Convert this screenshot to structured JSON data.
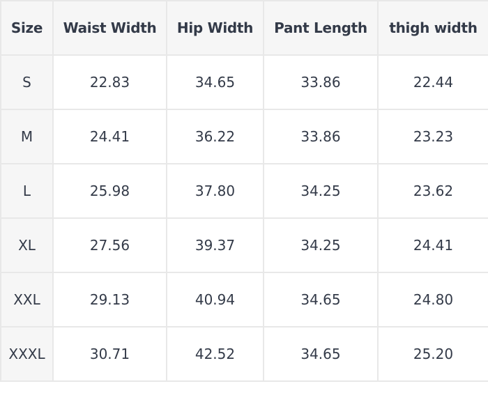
{
  "table": {
    "headers": [
      "Size",
      "Waist Width",
      "Hip Width",
      "Pant Length",
      "thigh width"
    ],
    "rows": [
      [
        "S",
        "22.83",
        "34.65",
        "33.86",
        "22.44"
      ],
      [
        "M",
        "24.41",
        "36.22",
        "33.86",
        "23.23"
      ],
      [
        "L",
        "25.98",
        "37.80",
        "34.25",
        "23.62"
      ],
      [
        "XL",
        "27.56",
        "39.37",
        "34.25",
        "24.41"
      ],
      [
        "XXL",
        "29.13",
        "40.94",
        "34.65",
        "24.80"
      ],
      [
        "XXXL",
        "30.71",
        "42.52",
        "34.65",
        "25.20"
      ]
    ]
  }
}
